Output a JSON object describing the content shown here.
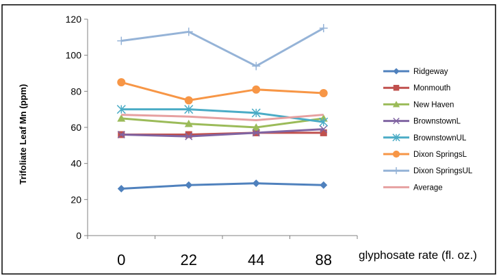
{
  "chart_data": {
    "type": "line",
    "title": "",
    "xlabel": "glyphosate rate (fl. oz.)",
    "ylabel": "Trifoliate Leaf Mn (ppm)",
    "categories": [
      "0",
      "22",
      "44",
      "88"
    ],
    "ylim": [
      0,
      120
    ],
    "yticks": [
      0,
      20,
      40,
      60,
      80,
      100,
      120
    ],
    "grid": false,
    "legend_position": "right",
    "series": [
      {
        "name": "Ridgeway",
        "values": [
          26,
          28,
          29,
          28
        ],
        "color": "#4F81BD",
        "marker": "diamond"
      },
      {
        "name": "Monmouth",
        "values": [
          56,
          56,
          57,
          57
        ],
        "color": "#C0504D",
        "marker": "square"
      },
      {
        "name": "New Haven",
        "values": [
          65,
          62,
          60,
          65
        ],
        "color": "#9BBB59",
        "marker": "triangle"
      },
      {
        "name": "BrownstownL",
        "values": [
          56,
          55,
          57,
          59
        ],
        "color": "#8064A2",
        "marker": "x"
      },
      {
        "name": "BrownstownUL",
        "values": [
          70,
          70,
          68,
          63
        ],
        "color": "#4BACC6",
        "marker": "star"
      },
      {
        "name": "Dixon SpringsL",
        "values": [
          85,
          75,
          81,
          79
        ],
        "color": "#F79646",
        "marker": "circle"
      },
      {
        "name": "Dixon SpringsUL",
        "values": [
          108,
          113,
          94,
          115
        ],
        "color": "#95B3D7",
        "marker": "plus"
      },
      {
        "name": "Average",
        "values": [
          67,
          66,
          64,
          67
        ],
        "color": "#E6A0A0",
        "marker": "none"
      }
    ]
  }
}
